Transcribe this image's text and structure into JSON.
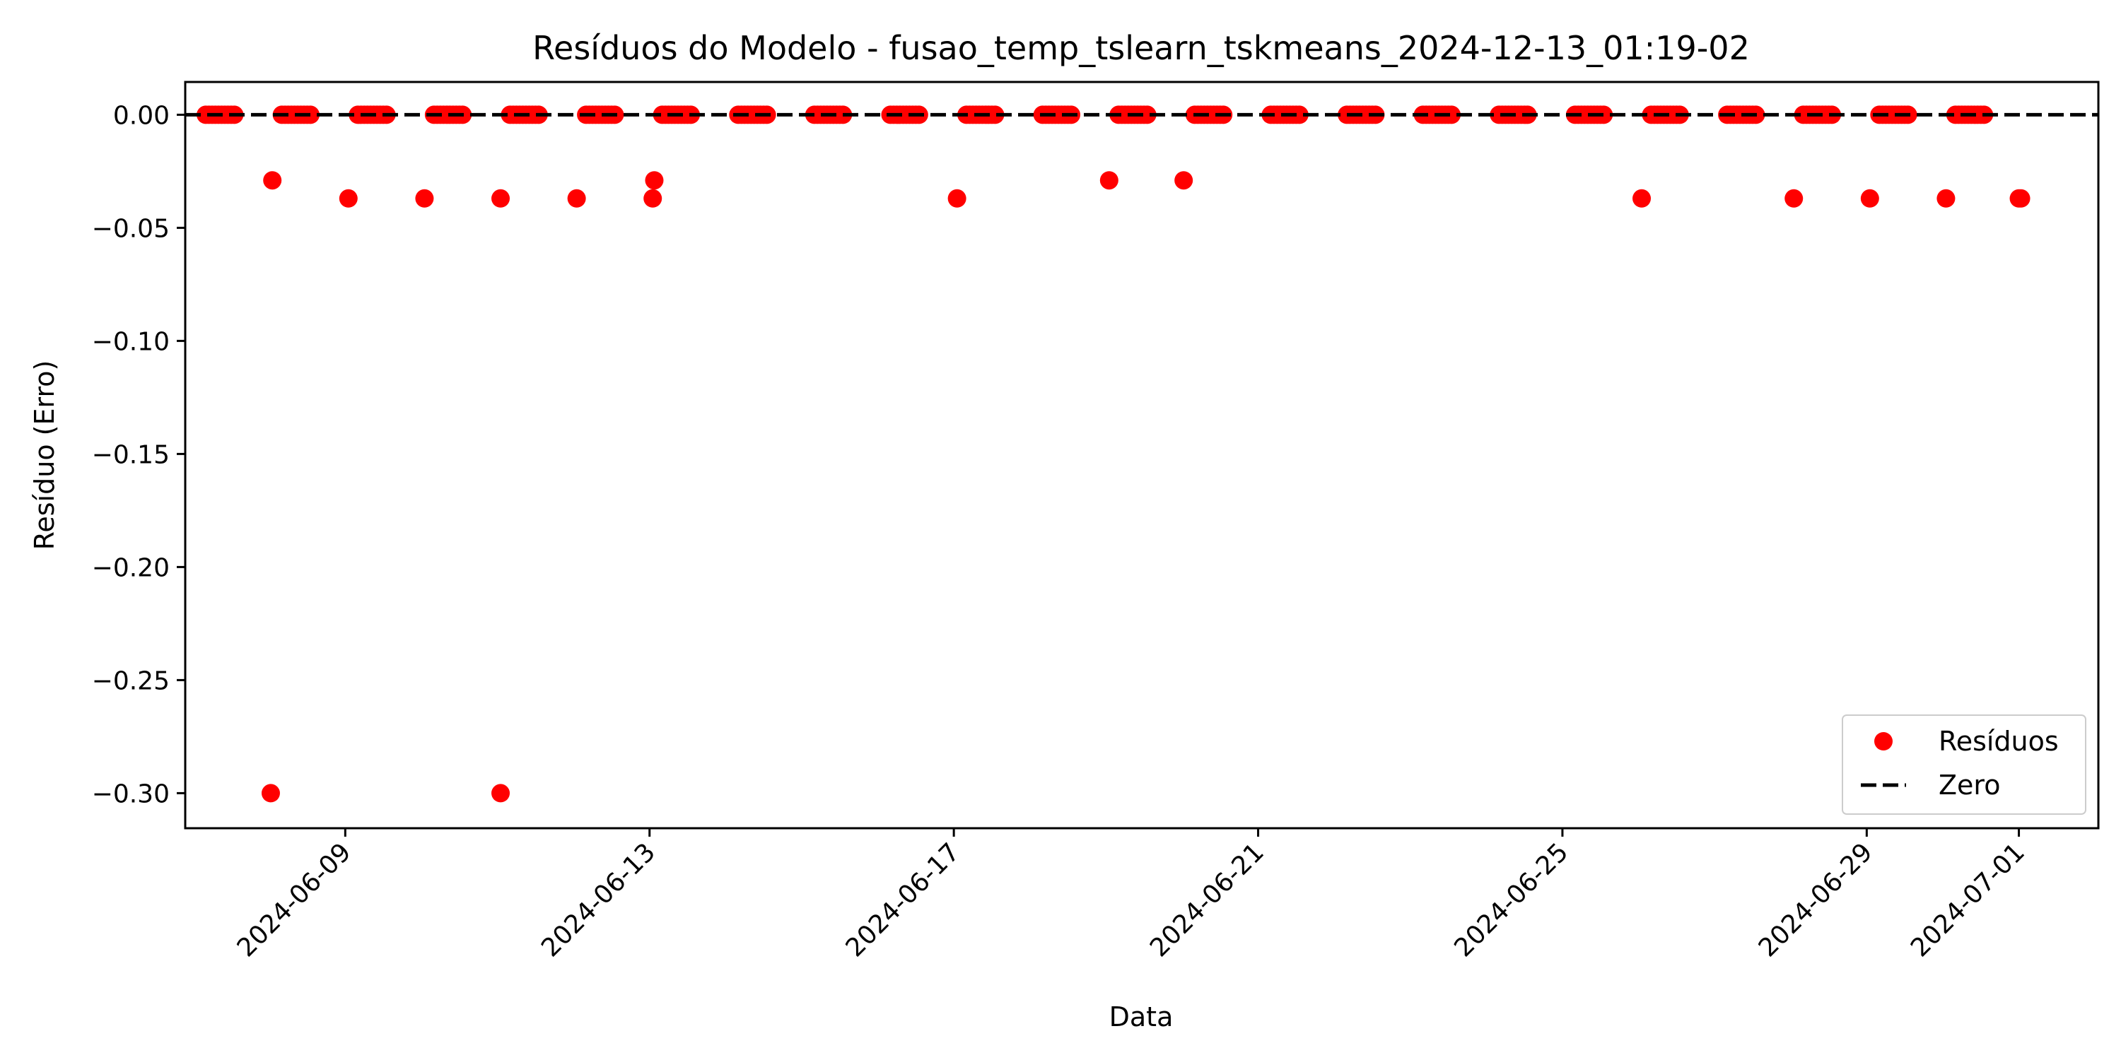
{
  "chart_data": {
    "type": "scatter",
    "title": "Resíduos do Modelo - fusao_temp_tslearn_tskmeans_2024-12-13_01:19-02",
    "xlabel": "Data",
    "ylabel": "Resíduo (Erro)",
    "x_type": "date",
    "xlim": [
      "2024-06-06 21:31",
      "2024-07-02 01:05"
    ],
    "ylim": [
      -0.3155,
      0.0145
    ],
    "x_ticks": [
      "2024-06-09",
      "2024-06-13",
      "2024-06-17",
      "2024-06-21",
      "2024-06-25",
      "2024-06-29",
      "2024-07-01"
    ],
    "y_ticks": [
      0.0,
      -0.05,
      -0.1,
      -0.15,
      -0.2,
      -0.25,
      -0.3
    ],
    "y_tick_labels": [
      "0.00",
      "−0.05",
      "−0.10",
      "−0.15",
      "−0.20",
      "−0.25",
      "−0.30"
    ],
    "zero_line": {
      "y": 0,
      "label": "Zero",
      "color": "#000000",
      "style": "dashed"
    },
    "legend": {
      "position": "lower right",
      "entries": [
        {
          "label": "Resíduos",
          "kind": "marker",
          "color": "#ff0000"
        },
        {
          "label": "Zero",
          "kind": "dashed-line",
          "color": "#000000"
        }
      ]
    },
    "series": [
      {
        "name": "Resíduos",
        "color": "#ff0000",
        "zero_runs": [
          [
            "2024-06-07 04:00",
            "2024-06-07 13:00"
          ],
          [
            "2024-06-08 04:00",
            "2024-06-08 13:00"
          ],
          [
            "2024-06-09 04:00",
            "2024-06-09 13:00"
          ],
          [
            "2024-06-10 04:00",
            "2024-06-10 13:00"
          ],
          [
            "2024-06-11 04:00",
            "2024-06-11 13:00"
          ],
          [
            "2024-06-12 04:00",
            "2024-06-12 13:00"
          ],
          [
            "2024-06-13 04:00",
            "2024-06-13 13:00"
          ],
          [
            "2024-06-14 04:00",
            "2024-06-14 13:00"
          ],
          [
            "2024-06-15 04:00",
            "2024-06-15 13:00"
          ],
          [
            "2024-06-16 04:00",
            "2024-06-16 13:00"
          ],
          [
            "2024-06-17 04:00",
            "2024-06-17 13:00"
          ],
          [
            "2024-06-18 04:00",
            "2024-06-18 13:00"
          ],
          [
            "2024-06-19 04:00",
            "2024-06-19 13:00"
          ],
          [
            "2024-06-20 04:00",
            "2024-06-20 13:00"
          ],
          [
            "2024-06-21 04:00",
            "2024-06-21 13:00"
          ],
          [
            "2024-06-22 04:00",
            "2024-06-22 13:00"
          ],
          [
            "2024-06-23 04:00",
            "2024-06-23 13:00"
          ],
          [
            "2024-06-24 04:00",
            "2024-06-24 13:00"
          ],
          [
            "2024-06-25 04:00",
            "2024-06-25 13:00"
          ],
          [
            "2024-06-26 04:00",
            "2024-06-26 13:00"
          ],
          [
            "2024-06-27 04:00",
            "2024-06-27 13:00"
          ],
          [
            "2024-06-28 04:00",
            "2024-06-28 13:00"
          ],
          [
            "2024-06-29 04:00",
            "2024-06-29 13:00"
          ],
          [
            "2024-06-30 04:00",
            "2024-06-30 13:00"
          ]
        ],
        "points": [
          {
            "x": "2024-06-08 00:30",
            "y": -0.3
          },
          {
            "x": "2024-06-08 01:00",
            "y": -0.029
          },
          {
            "x": "2024-06-09 01:00",
            "y": -0.037
          },
          {
            "x": "2024-06-10 01:00",
            "y": -0.037
          },
          {
            "x": "2024-06-11 01:00",
            "y": -0.3
          },
          {
            "x": "2024-06-11 01:00",
            "y": -0.037
          },
          {
            "x": "2024-06-12 01:00",
            "y": -0.037
          },
          {
            "x": "2024-06-13 01:00",
            "y": -0.037
          },
          {
            "x": "2024-06-13 01:30",
            "y": -0.029
          },
          {
            "x": "2024-06-17 01:00",
            "y": -0.037
          },
          {
            "x": "2024-06-19 01:00",
            "y": -0.029
          },
          {
            "x": "2024-06-20 00:30",
            "y": -0.029
          },
          {
            "x": "2024-06-26 01:00",
            "y": -0.037
          },
          {
            "x": "2024-06-28 01:00",
            "y": -0.037
          },
          {
            "x": "2024-06-29 01:00",
            "y": -0.037
          },
          {
            "x": "2024-06-30 01:00",
            "y": -0.037
          },
          {
            "x": "2024-07-01 00:00",
            "y": -0.037
          },
          {
            "x": "2024-07-01 00:40",
            "y": -0.037
          }
        ]
      }
    ]
  }
}
